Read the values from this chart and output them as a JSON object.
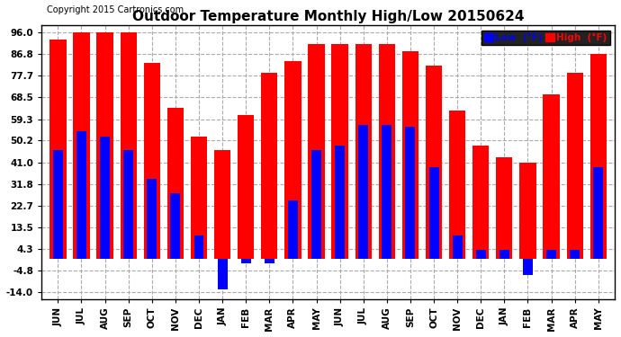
{
  "title": "Outdoor Temperature Monthly High/Low 20150624",
  "copyright": "Copyright 2015 Cartronics.com",
  "legend_low": "Low  (°F)",
  "legend_high": "High  (°F)",
  "categories": [
    "JUN",
    "JUL",
    "AUG",
    "SEP",
    "OCT",
    "NOV",
    "DEC",
    "JAN",
    "FEB",
    "MAR",
    "APR",
    "MAY",
    "JUN",
    "JUL",
    "AUG",
    "SEP",
    "OCT",
    "NOV",
    "DEC",
    "JAN",
    "FEB",
    "MAR",
    "APR",
    "MAY"
  ],
  "high_values": [
    93.0,
    96.0,
    96.0,
    96.0,
    83.0,
    64.0,
    52.0,
    46.0,
    61.0,
    79.0,
    84.0,
    91.0,
    91.0,
    91.0,
    91.0,
    88.0,
    82.0,
    63.0,
    48.0,
    43.0,
    41.0,
    70.0,
    79.0,
    87.0
  ],
  "low_values": [
    46.0,
    54.0,
    52.0,
    46.0,
    34.0,
    28.0,
    10.0,
    -13.0,
    -2.0,
    -2.0,
    25.0,
    46.0,
    48.0,
    57.0,
    57.0,
    56.0,
    39.0,
    10.0,
    4.0,
    4.0,
    -7.0,
    4.0,
    4.0,
    39.0
  ],
  "yticks": [
    -14.0,
    -4.8,
    4.3,
    13.5,
    22.7,
    31.8,
    41.0,
    50.2,
    59.3,
    68.5,
    77.7,
    86.8,
    96.0
  ],
  "ylim": [
    -17.0,
    99.0
  ],
  "bar_color_high": "#FF0000",
  "bar_color_low": "#0000FF",
  "bg_color": "#FFFFFF",
  "grid_color": "#AAAAAA",
  "title_fontsize": 11,
  "copyright_fontsize": 7,
  "tick_fontsize": 7.5,
  "bar_width": 0.7
}
